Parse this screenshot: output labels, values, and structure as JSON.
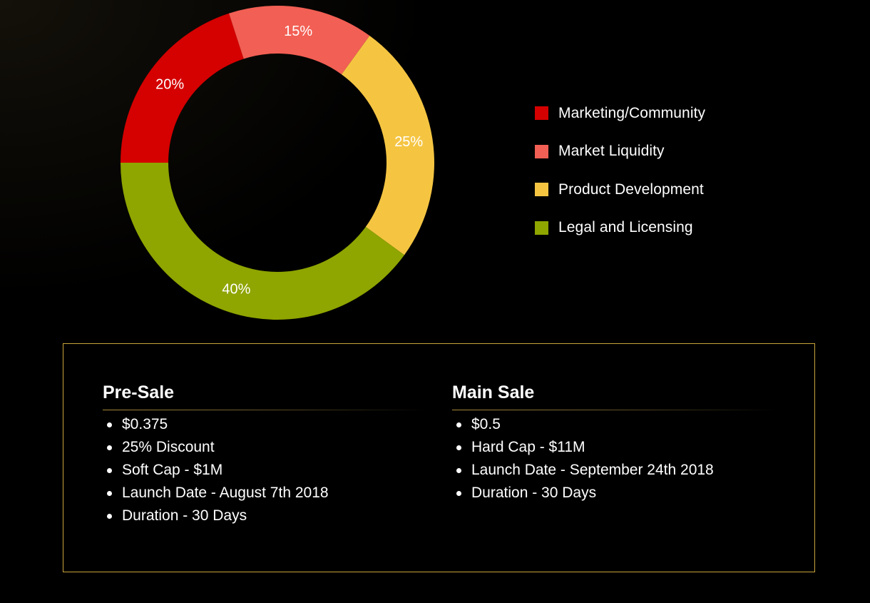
{
  "chart_data": {
    "type": "pie",
    "variant": "donut",
    "categories": [
      "Marketing/Community",
      "Market Liquidity",
      "Product Development",
      "Legal and Licensing"
    ],
    "values": [
      20,
      15,
      25,
      40
    ],
    "labels": [
      "20%",
      "15%",
      "25%",
      "40%"
    ],
    "colors": [
      "#d50000",
      "#f25f54",
      "#f5c542",
      "#8fa500"
    ],
    "legend_position": "right"
  },
  "legend": {
    "items": [
      {
        "label": "Marketing/Community",
        "color": "#d50000"
      },
      {
        "label": "Market Liquidity",
        "color": "#f25f54"
      },
      {
        "label": "Product Development",
        "color": "#f5c542"
      },
      {
        "label": "Legal and Licensing",
        "color": "#8fa500"
      }
    ]
  },
  "pre_sale": {
    "title": "Pre-Sale",
    "items": [
      "$0.375",
      "25% Discount",
      "Soft Cap - $1M",
      "Launch Date - August 7th 2018",
      "Duration - 30 Days"
    ]
  },
  "main_sale": {
    "title": "Main Sale",
    "items": [
      "$0.5",
      "Hard Cap - $11M",
      "Launch Date - September 24th 2018",
      "Duration - 30 Days"
    ]
  },
  "theme": {
    "background": "#000000",
    "border_accent": "#c9a43b"
  }
}
